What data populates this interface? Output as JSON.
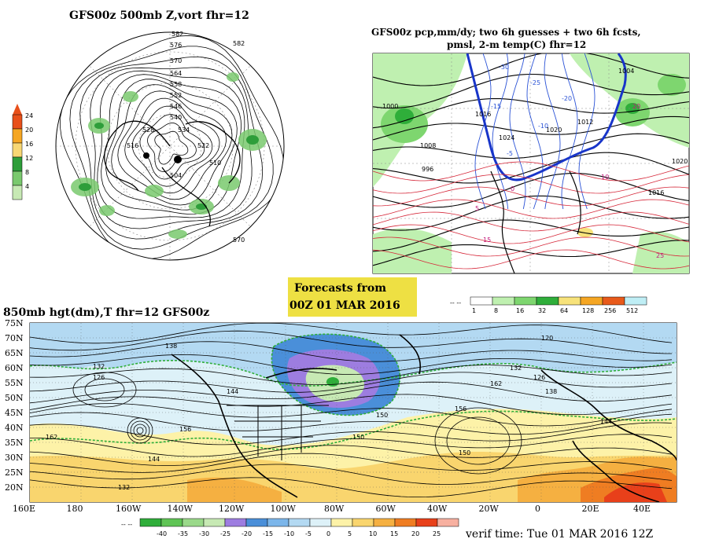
{
  "top_left": {
    "title": "GFS00z  500mb Z,vort    fhr=12",
    "colorbar": {
      "ticks": [
        "24",
        "20",
        "16",
        "12",
        "8",
        "4"
      ],
      "colors": [
        "#e8501a",
        "#f5a623",
        "#f7d774",
        "#2e9e3a",
        "#7ac96e",
        "#c7e9b4"
      ]
    },
    "contour_labels": [
      "582",
      "576",
      "570",
      "564",
      "558",
      "552",
      "546",
      "540",
      "534",
      "528",
      "522",
      "516",
      "510",
      "504",
      "582",
      "570"
    ]
  },
  "top_right": {
    "title_line1": "GFS00z pcp,mm/dy; two 6h guesses + two 6h fcsts,",
    "title_line2": "pmsl, 2-m temp(C)   fhr=12",
    "pressure_labels": [
      "1000",
      "1008",
      "1016",
      "1024",
      "1020",
      "1012",
      "996",
      "1004",
      "1016",
      "1020"
    ],
    "temp_labels": [
      "-30",
      "-25",
      "-20",
      "-15",
      "-10",
      "-5",
      "0",
      "5",
      "10",
      "15",
      "20",
      "25"
    ],
    "colorbar": {
      "ticks": [
        "1",
        "8",
        "16",
        "32",
        "64",
        "128",
        "256",
        "512"
      ],
      "colors": [
        "#ffffff",
        "#bff0b0",
        "#7ed66f",
        "#2fae3a",
        "#f7e27a",
        "#f5a623",
        "#e85a1a",
        "#bfeef5"
      ]
    }
  },
  "forecast_box": {
    "line1": "Forecasts from",
    "line2": "00Z 01 MAR 2016"
  },
  "bottom": {
    "title": "850mb hgt(dm),T  fhr=12 GFS00z",
    "lat_labels": [
      "75N",
      "70N",
      "65N",
      "60N",
      "55N",
      "50N",
      "45N",
      "40N",
      "35N",
      "30N",
      "25N",
      "20N"
    ],
    "lon_labels": [
      "160E",
      "180",
      "160W",
      "140W",
      "120W",
      "100W",
      "80W",
      "60W",
      "40W",
      "20W",
      "0",
      "20E",
      "40E"
    ],
    "height_labels": [
      "138",
      "132",
      "126",
      "144",
      "150",
      "156",
      "162",
      "144",
      "132",
      "150",
      "156",
      "150",
      "144",
      "138",
      "132",
      "126",
      "120",
      "162"
    ],
    "colorbar": {
      "ticks": [
        "-40",
        "-35",
        "-30",
        "-25",
        "-20",
        "-15",
        "-10",
        "-5",
        "0",
        "5",
        "10",
        "15",
        "20",
        "25"
      ],
      "colors": [
        "#2fae3a",
        "#5fc455",
        "#9ad98a",
        "#c7e9b4",
        "#9d7de0",
        "#4a8fd9",
        "#7cb6ea",
        "#b3d9f2",
        "#ddf1f8",
        "#fdf2a8",
        "#f9d56e",
        "#f5b041",
        "#ef7d22",
        "#e8401a",
        "#f7b0a0"
      ]
    },
    "verif_time": "verif time: Tue 01 MAR 2016 12Z"
  }
}
